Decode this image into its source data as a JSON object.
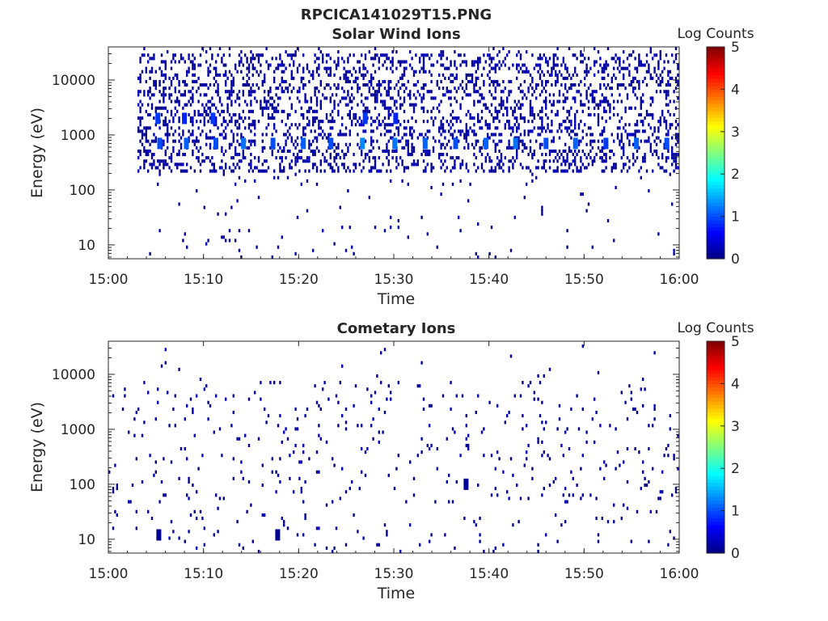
{
  "figure_title": "RPCICA141029T15.PNG",
  "colors": {
    "colormap": [
      "#00007f",
      "#0000ff",
      "#007fff",
      "#00ffff",
      "#7fff7f",
      "#ffff00",
      "#ff7f00",
      "#ff0000",
      "#7f0000"
    ],
    "axis": "#262626"
  },
  "chart_data": [
    {
      "type": "heatmap",
      "title": "Solar Wind Ions",
      "xlabel": "Time",
      "ylabel": "Energy (eV)",
      "x_ticks": [
        "15:00",
        "15:10",
        "15:20",
        "15:30",
        "15:40",
        "15:50",
        "16:00"
      ],
      "x_range_minutes": [
        0,
        60
      ],
      "y_scale": "log",
      "y_ticks": [
        {
          "value": 10,
          "label": "10"
        },
        {
          "value": 100,
          "label": "100"
        },
        {
          "value": 1000,
          "label": "1000"
        },
        {
          "value": 10000,
          "label": "10000"
        }
      ],
      "ylim": [
        5.6,
        40000
      ],
      "colorbar": {
        "label": "Log Counts",
        "ticks": [
          "0",
          "1",
          "2",
          "3",
          "4",
          "5"
        ],
        "range": [
          0,
          5
        ]
      },
      "scan_start_minute": 3,
      "scan_period_minutes": 3.2,
      "cells": [
        {
          "minute": 5.2,
          "energy_eV": 2000,
          "log_counts": 0.9
        },
        {
          "minute": 5.4,
          "energy_eV": 700,
          "log_counts": 1.0
        },
        {
          "minute": 8.0,
          "energy_eV": 2000,
          "log_counts": 0.8
        },
        {
          "minute": 8.2,
          "energy_eV": 700,
          "log_counts": 1.1
        },
        {
          "minute": 11.0,
          "energy_eV": 2000,
          "log_counts": 0.9
        },
        {
          "minute": 11.3,
          "energy_eV": 700,
          "log_counts": 1.0
        },
        {
          "minute": 14.2,
          "energy_eV": 700,
          "log_counts": 1.2
        },
        {
          "minute": 17.3,
          "energy_eV": 700,
          "log_counts": 1.0
        },
        {
          "minute": 20.5,
          "energy_eV": 700,
          "log_counts": 1.1
        },
        {
          "minute": 23.4,
          "energy_eV": 700,
          "log_counts": 1.0
        },
        {
          "minute": 26.7,
          "energy_eV": 700,
          "log_counts": 1.3
        },
        {
          "minute": 27.0,
          "energy_eV": 2000,
          "log_counts": 0.9
        },
        {
          "minute": 30.1,
          "energy_eV": 700,
          "log_counts": 1.2
        },
        {
          "minute": 30.2,
          "energy_eV": 2000,
          "log_counts": 0.8
        },
        {
          "minute": 33.3,
          "energy_eV": 700,
          "log_counts": 1.1
        },
        {
          "minute": 36.5,
          "energy_eV": 700,
          "log_counts": 1.0
        },
        {
          "minute": 39.7,
          "energy_eV": 700,
          "log_counts": 1.1
        },
        {
          "minute": 42.8,
          "energy_eV": 700,
          "log_counts": 1.2
        },
        {
          "minute": 46.0,
          "energy_eV": 700,
          "log_counts": 1.0
        },
        {
          "minute": 49.1,
          "energy_eV": 700,
          "log_counts": 1.1
        },
        {
          "minute": 52.3,
          "energy_eV": 700,
          "log_counts": 0.9
        },
        {
          "minute": 55.5,
          "energy_eV": 700,
          "log_counts": 1.1
        },
        {
          "minute": 58.7,
          "energy_eV": 700,
          "log_counts": 1.0
        }
      ],
      "seed": 1729,
      "sparse_density": 0.55
    },
    {
      "type": "heatmap",
      "title": "Cometary Ions",
      "xlabel": "Time",
      "ylabel": "Energy (eV)",
      "x_ticks": [
        "15:00",
        "15:10",
        "15:20",
        "15:30",
        "15:40",
        "15:50",
        "16:00"
      ],
      "x_range_minutes": [
        0,
        60
      ],
      "y_scale": "log",
      "y_ticks": [
        {
          "value": 10,
          "label": "10"
        },
        {
          "value": 100,
          "label": "100"
        },
        {
          "value": 1000,
          "label": "1000"
        },
        {
          "value": 10000,
          "label": "10000"
        }
      ],
      "ylim": [
        5.6,
        40000
      ],
      "colorbar": {
        "label": "Log Counts",
        "ticks": [
          "0",
          "1",
          "2",
          "3",
          "4",
          "5"
        ],
        "range": [
          0,
          5
        ]
      },
      "cells": [
        {
          "minute": 5.3,
          "energy_eV": 12,
          "log_counts": 0.1
        },
        {
          "minute": 17.8,
          "energy_eV": 12,
          "log_counts": 0.1
        },
        {
          "minute": 37.6,
          "energy_eV": 100,
          "log_counts": 0.1
        }
      ],
      "seed": 4242,
      "sparse_density": 0.07
    }
  ]
}
